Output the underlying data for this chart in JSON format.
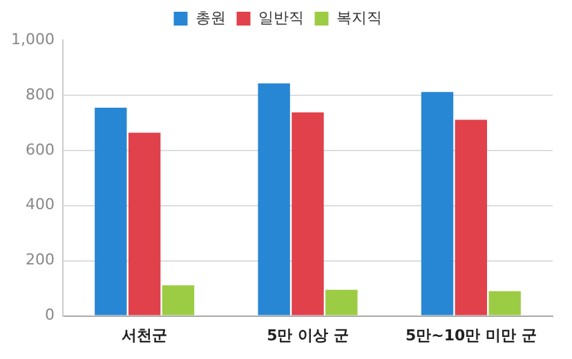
{
  "chart_data": {
    "type": "bar",
    "categories": [
      "서천군",
      "5만 이상 군",
      "5만~10만 미만 군"
    ],
    "series": [
      {
        "name": "총원",
        "color": "#2887d4",
        "values": [
          755,
          843,
          812
        ]
      },
      {
        "name": "일반직",
        "color": "#e0414b",
        "values": [
          664,
          738,
          711
        ]
      },
      {
        "name": "복지직",
        "color": "#9ccc44",
        "values": [
          111,
          95,
          90
        ]
      }
    ],
    "ylim": [
      0,
      1000
    ],
    "yticks": [
      0,
      200,
      400,
      600,
      800,
      {
        "value": 1000,
        "label": "1,000"
      }
    ],
    "grid": "y",
    "legend": "top"
  }
}
